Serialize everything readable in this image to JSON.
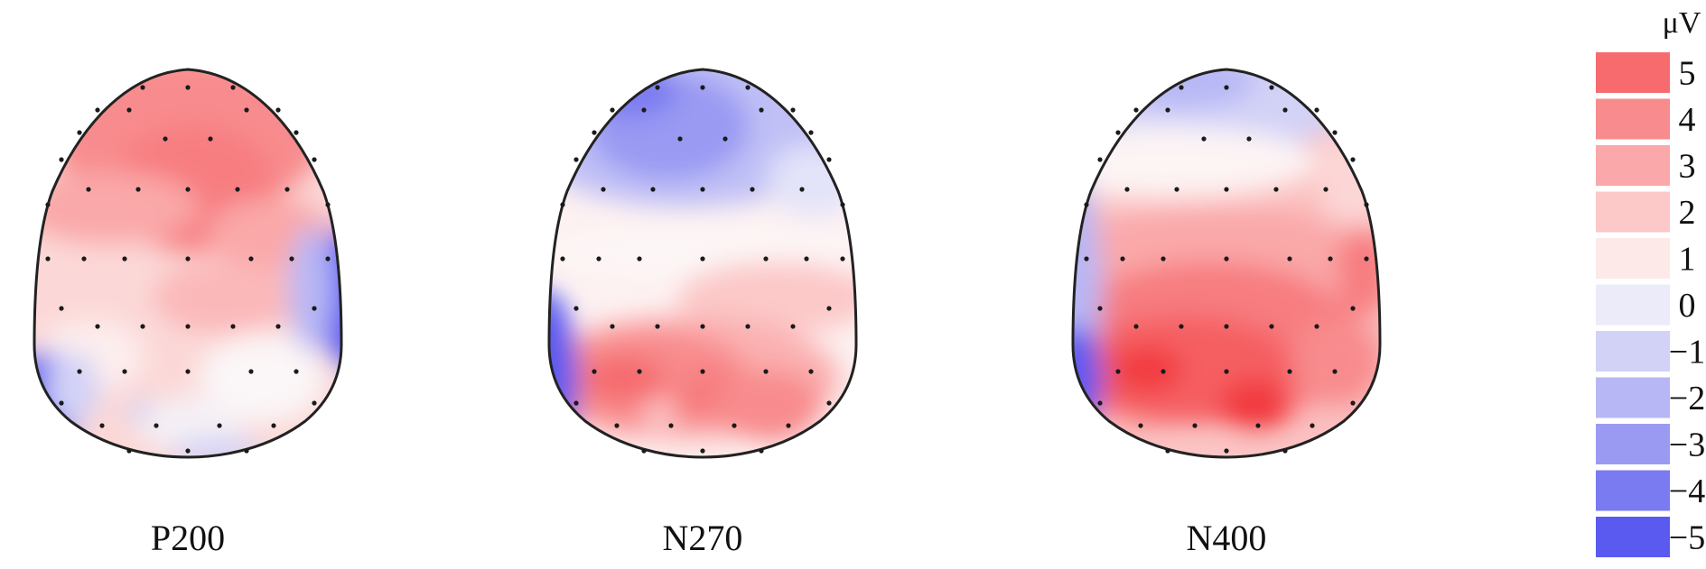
{
  "legend": {
    "unit": "μV",
    "entries": [
      {
        "label": "5",
        "value": 5,
        "color": "#f76b6e"
      },
      {
        "label": "4",
        "value": 4,
        "color": "#f88b8d"
      },
      {
        "label": "3",
        "value": 3,
        "color": "#faa8a9"
      },
      {
        "label": "2",
        "value": 2,
        "color": "#fcc8c8"
      },
      {
        "label": "1",
        "value": 1,
        "color": "#fde9e8"
      },
      {
        "label": "0",
        "value": 0,
        "color": "#ebebf9"
      },
      {
        "label": "−1",
        "value": -1,
        "color": "#d2d2f7"
      },
      {
        "label": "−2",
        "value": -2,
        "color": "#b7b7f5"
      },
      {
        "label": "−3",
        "value": -3,
        "color": "#9a9af3"
      },
      {
        "label": "−4",
        "value": -4,
        "color": "#7a7af1"
      },
      {
        "label": "−5",
        "value": -5,
        "color": "#5a5af0"
      }
    ]
  },
  "maps": [
    {
      "label": "P200"
    },
    {
      "label": "N270"
    },
    {
      "label": "N400"
    }
  ]
}
